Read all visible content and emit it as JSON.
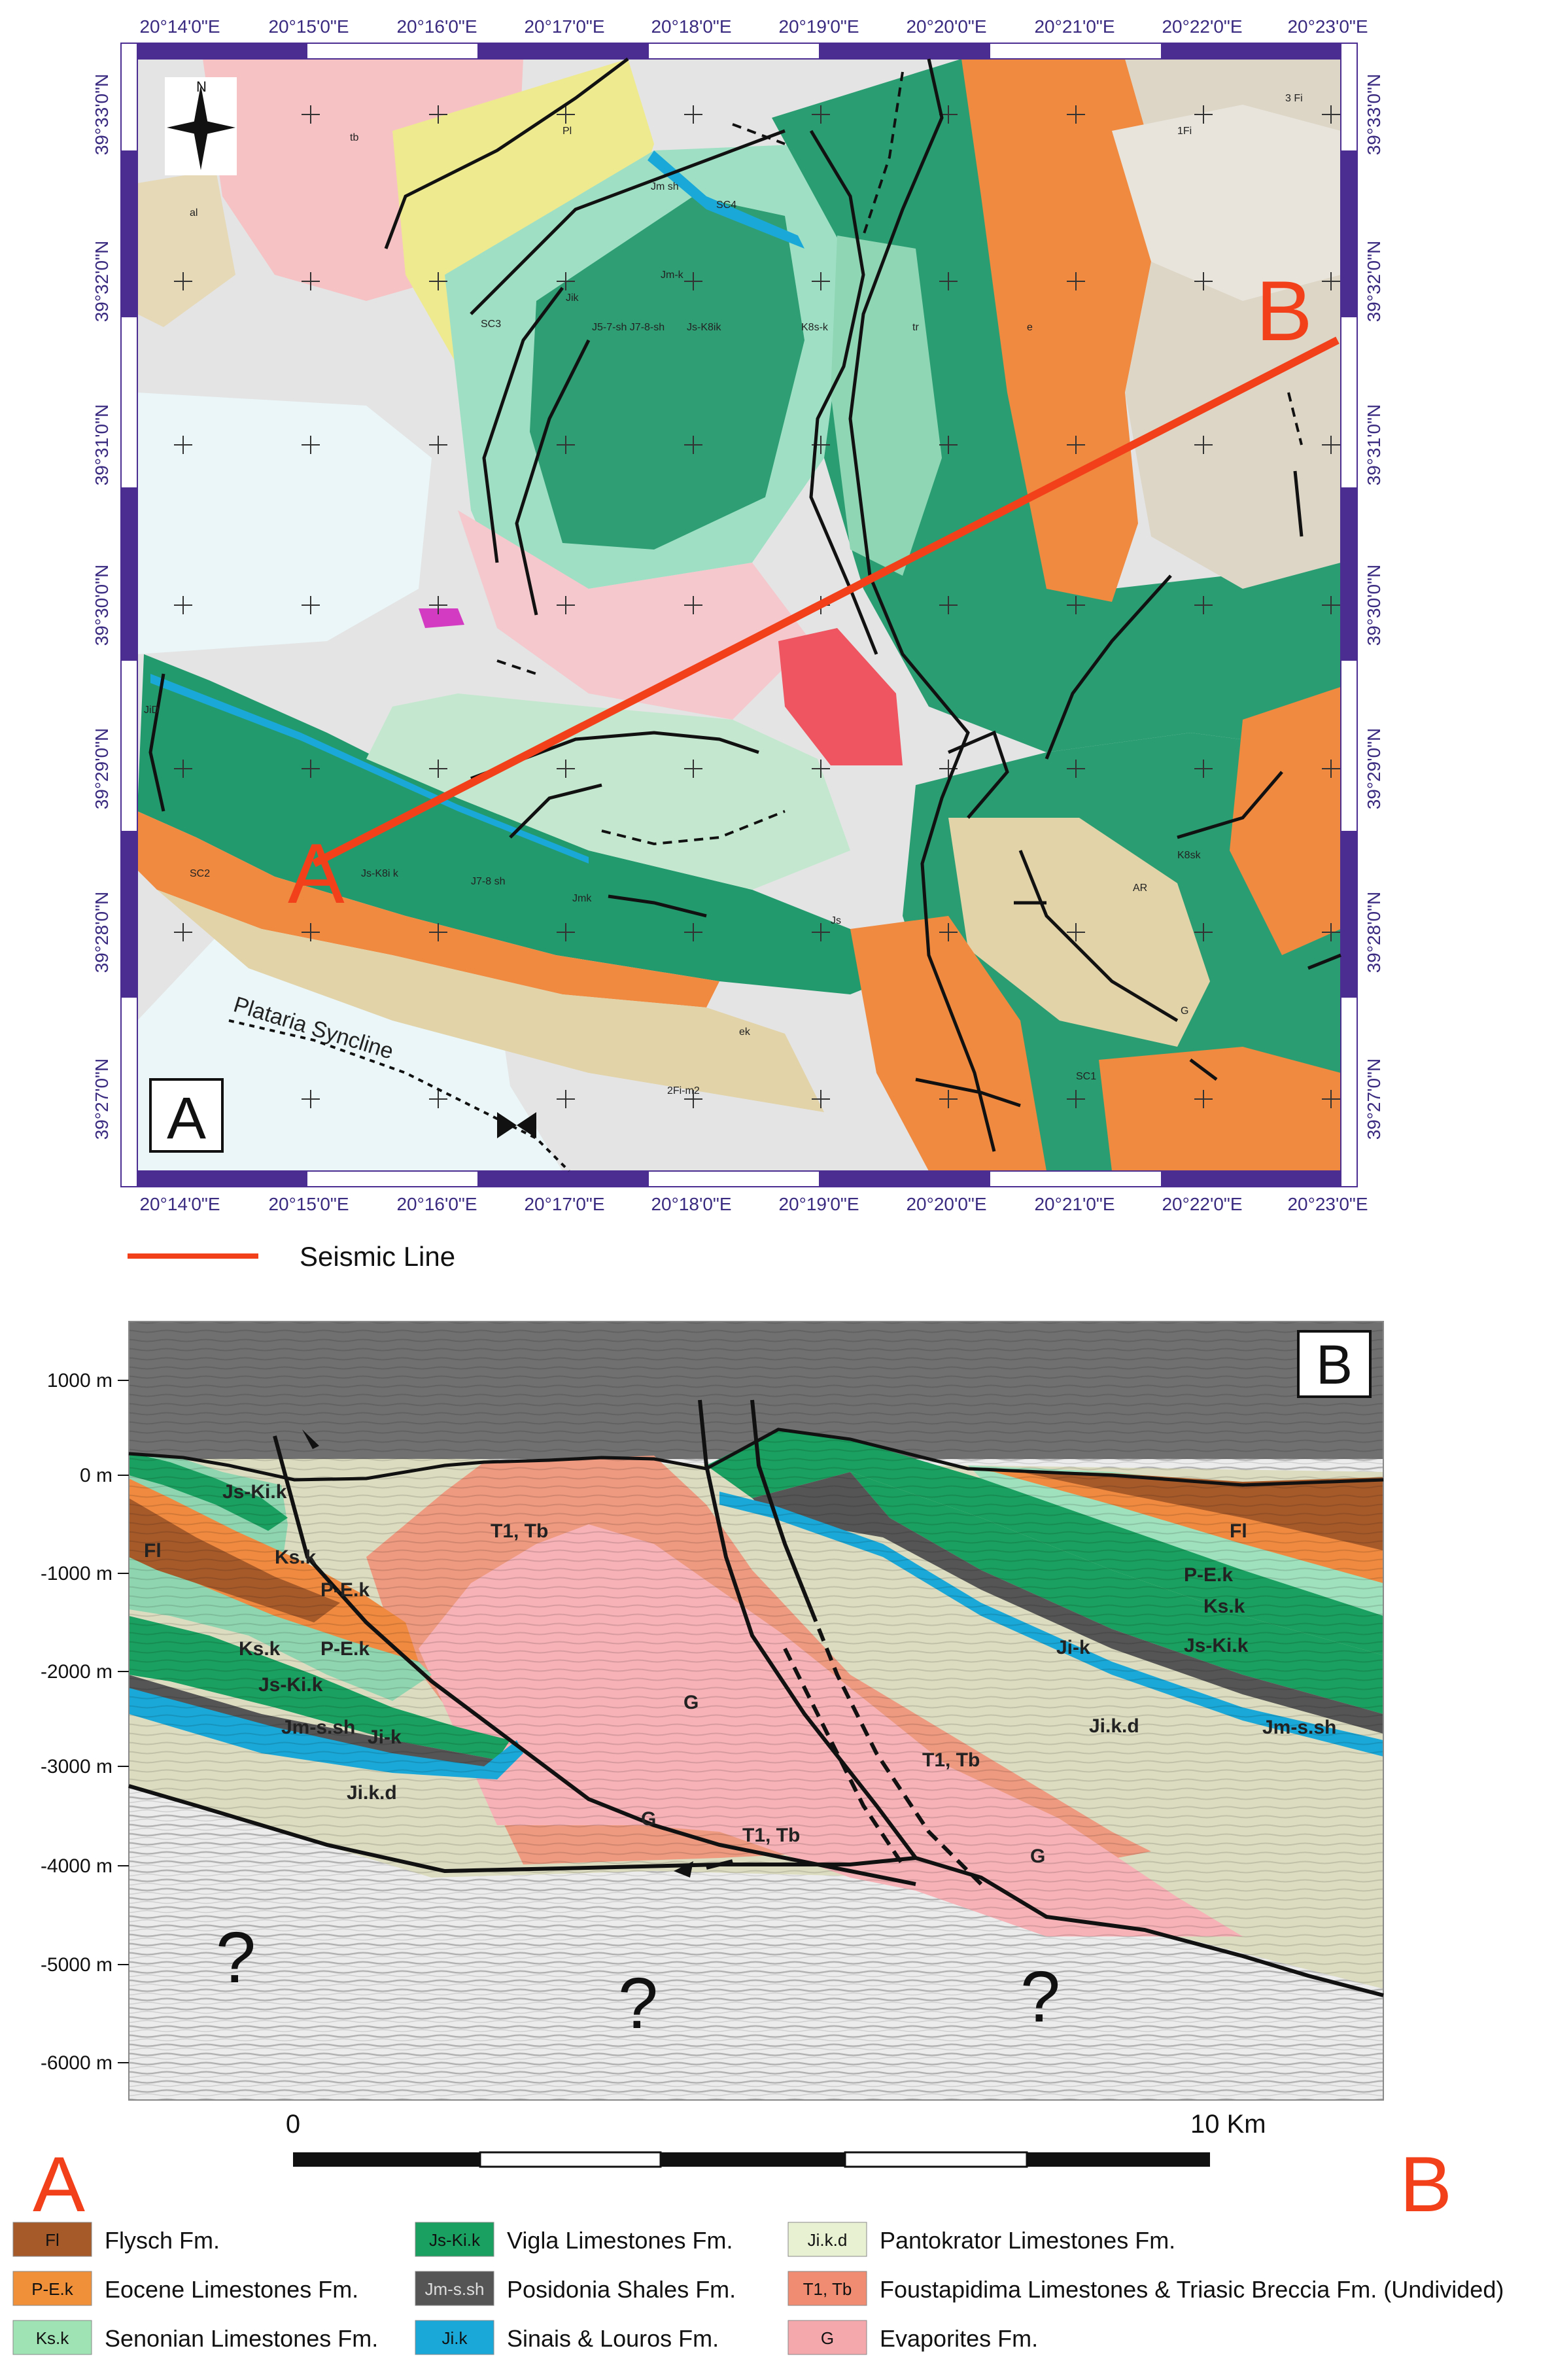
{
  "map": {
    "panel_label": "A",
    "lon_labels": [
      "20°14'0\"E",
      "20°15'0\"E",
      "20°16'0\"E",
      "20°17'0\"E",
      "20°18'0\"E",
      "20°19'0\"E",
      "20°20'0\"E",
      "20°21'0\"E",
      "20°22'0\"E",
      "20°23'0\"E"
    ],
    "lat_labels": [
      "39°33'0\"N",
      "39°32'0\"N",
      "39°31'0\"N",
      "39°30'0\"N",
      "39°29'0\"N",
      "39°28'0\"N",
      "39°27'0\"N"
    ],
    "north_label": "N",
    "syncline_label": "Plataria Syncline",
    "line_end_a": "A",
    "line_end_b": "B",
    "unit_labels": [
      "tb",
      "Pl",
      "al",
      "SC4",
      "Jm sh",
      "Jm-k",
      "Jik",
      "SC3",
      "J5-7-sh J7-8-sh",
      "Js-K8ik",
      "K8s-k",
      "tr",
      "e",
      "1Fi",
      "3 Fi",
      "JiD",
      "SC2",
      "Js-K8i k",
      "J7-8 sh",
      "Jmk",
      "Js",
      "ek",
      "2Fi-m2",
      "K8sk",
      "AR",
      "G",
      "SC1"
    ]
  },
  "seismic_legend": {
    "label": "Seismic Line"
  },
  "section": {
    "panel_label": "B",
    "depth_labels": [
      "1000 m",
      "0 m",
      "-1000 m",
      "-2000 m",
      "-3000 m",
      "-4000 m",
      "-5000 m",
      "-6000 m"
    ],
    "unit_labels": [
      "Js-Ki.k",
      "Fl",
      "Ks.k",
      "P-E.k",
      "P-E.k",
      "Ks.k",
      "Js-Ki.k",
      "Jm-s.sh",
      "Ji-k",
      "Ji.k.d",
      "T1, Tb",
      "G",
      "T1, Tb",
      "G",
      "T1, Tb",
      "G",
      "Fl",
      "P-E.k",
      "Ks.k",
      "Js-Ki.k",
      "Ji-k",
      "Ji.k.d",
      "Jm-s.sh"
    ],
    "unknown_labels": [
      "?",
      "?",
      "?"
    ],
    "end_a": "A",
    "end_b": "B",
    "scale_start": "0",
    "scale_end": "10 Km"
  },
  "legend": {
    "items": [
      {
        "code": "Fl",
        "name": "Flysch Fm.",
        "color": "#a65a2a"
      },
      {
        "code": "P-E.k",
        "name": "Eocene Limestones Fm.",
        "color": "#f0913a"
      },
      {
        "code": "Ks.k",
        "name": "Senonian Limestones Fm.",
        "color": "#9fe3b4"
      },
      {
        "code": "Js-Ki.k",
        "name": "Vigla Limestones Fm.",
        "color": "#1aa060"
      },
      {
        "code": "Jm-s.sh",
        "name": "Posidonia Shales Fm.",
        "color": "#555555"
      },
      {
        "code": "Ji.k",
        "name": "Sinais & Louros Fm.",
        "color": "#1aa8d8"
      },
      {
        "code": "Ji.k.d",
        "name": "Pantokrator Limestones Fm.",
        "color": "#e8f2d2"
      },
      {
        "code": "T1, Tb",
        "name": "Foustapidima Limestones & Triasic Breccia Fm. (Undivided)",
        "color": "#f08c72"
      },
      {
        "code": "G",
        "name": "Evaporites Fm.",
        "color": "#f4a8ac"
      }
    ]
  }
}
